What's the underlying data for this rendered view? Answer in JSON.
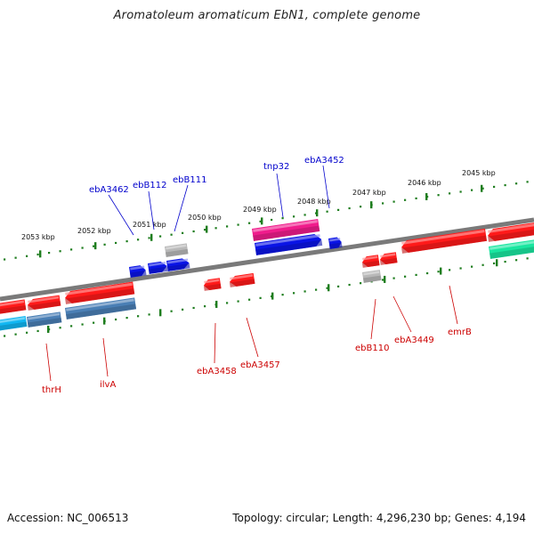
{
  "title": "Aromatoleum aromaticum EbN1, complete genome",
  "footer": {
    "accession": "Accession: NC_006513",
    "summary": "Topology: circular; Length: 4,296,230 bp; Genes: 4,194"
  },
  "colors": {
    "backbone": "#7a7a7a",
    "tick": "#1e7d1e",
    "forward_label": "#0000cc",
    "reverse_label": "#cc0000",
    "red_gene": "#ff1a1a",
    "blue_gene": "#0a14e6",
    "grey_gene": "#b8b8b8",
    "magenta_gene": "#f01c8c",
    "cyan_gene": "#11b7f2",
    "steel_gene": "#4a7fb5",
    "mint_gene": "#1ae6a0"
  },
  "tick_labels": [
    "2053 kbp",
    "2052 kbp",
    "2051 kbp",
    "2050 kbp",
    "2049 kbp",
    "2048 kbp",
    "2047 kbp",
    "2046 kbp",
    "2045 kbp"
  ],
  "forward_genes": [
    "ebA3462",
    "ebB112",
    "ebB111",
    "tnp32",
    "ebA3452"
  ],
  "reverse_genes": [
    "thrH",
    "ilvA",
    "ebA3458",
    "ebA3457",
    "ebB110",
    "ebA3449",
    "emrB"
  ]
}
